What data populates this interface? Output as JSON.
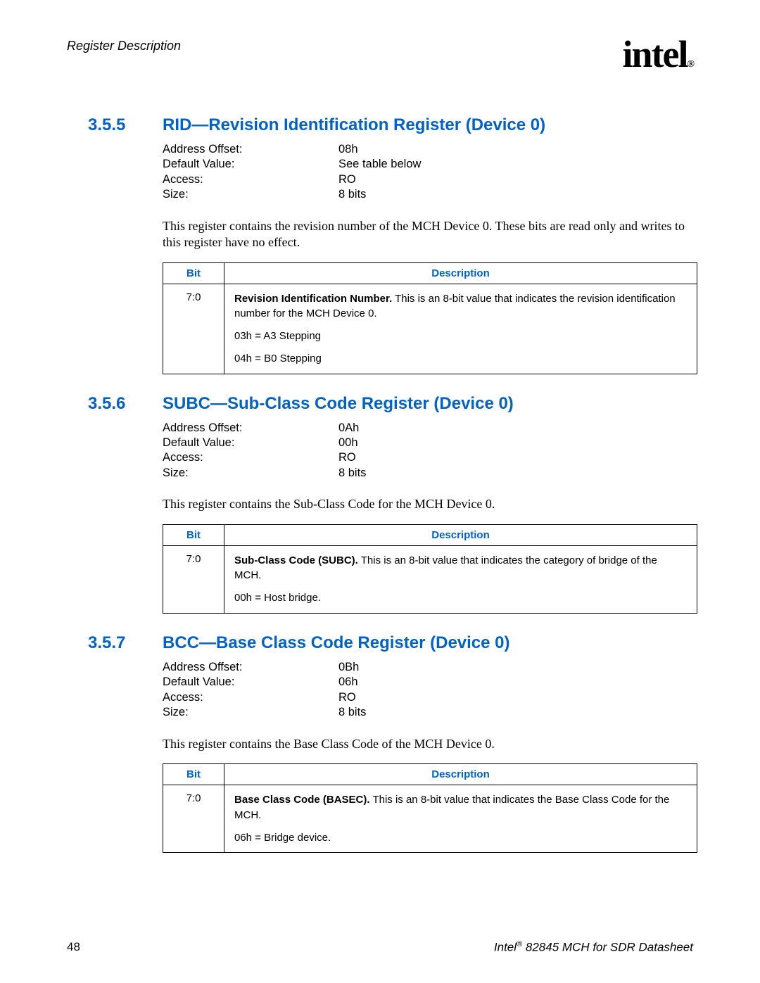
{
  "page": {
    "header_title": "Register Description",
    "logo_text": "intel",
    "page_number": "48",
    "footer_brand": "Intel",
    "footer_suffix": " 82845 MCH for SDR Datasheet",
    "link_color": "#0062c4",
    "text_color": "#000000",
    "background": "#ffffff"
  },
  "sections": [
    {
      "num": "3.5.5",
      "title": "RID—Revision Identification Register (Device 0)",
      "props": [
        {
          "label": "Address Offset:",
          "value": "08h"
        },
        {
          "label": "Default Value:",
          "value": "See table below"
        },
        {
          "label": "Access:",
          "value": "RO"
        },
        {
          "label": "Size:",
          "value": "8 bits"
        }
      ],
      "description": "This register contains the revision number of the MCH Device 0. These bits are read only and writes to this register have no effect.",
      "table": {
        "headers": {
          "bit": "Bit",
          "desc": "Description"
        },
        "rows": [
          {
            "bit": "7:0",
            "bold": "Revision Identification Number.",
            "text": " This is an 8-bit value that indicates the revision identification number for the MCH Device 0.",
            "lines": [
              "03h = A3 Stepping",
              "04h = B0 Stepping"
            ]
          }
        ]
      }
    },
    {
      "num": "3.5.6",
      "title": "SUBC—Sub-Class Code Register (Device 0)",
      "props": [
        {
          "label": "Address Offset:",
          "value": "0Ah"
        },
        {
          "label": "Default Value:",
          "value": "00h"
        },
        {
          "label": "Access:",
          "value": "RO"
        },
        {
          "label": "Size:",
          "value": "8 bits"
        }
      ],
      "description": "This register contains the Sub-Class Code for the MCH Device 0.",
      "table": {
        "headers": {
          "bit": "Bit",
          "desc": "Description"
        },
        "rows": [
          {
            "bit": "7:0",
            "bold": "Sub-Class Code (SUBC).",
            "text": " This is an 8-bit value that indicates the category of bridge of the MCH.",
            "lines": [
              "00h = Host bridge."
            ]
          }
        ]
      }
    },
    {
      "num": "3.5.7",
      "title": "BCC—Base Class Code Register (Device 0)",
      "props": [
        {
          "label": "Address Offset:",
          "value": "0Bh"
        },
        {
          "label": "Default Value:",
          "value": "06h"
        },
        {
          "label": "Access:",
          "value": "RO"
        },
        {
          "label": "Size:",
          "value": "8 bits"
        }
      ],
      "description": "This register contains the Base Class Code of the MCH Device 0.",
      "table": {
        "headers": {
          "bit": "Bit",
          "desc": "Description"
        },
        "rows": [
          {
            "bit": "7:0",
            "bold": "Base Class Code (BASEC).",
            "text": " This is an 8-bit value that indicates the Base Class Code for the MCH.",
            "lines": [
              "06h = Bridge device."
            ]
          }
        ]
      }
    }
  ]
}
